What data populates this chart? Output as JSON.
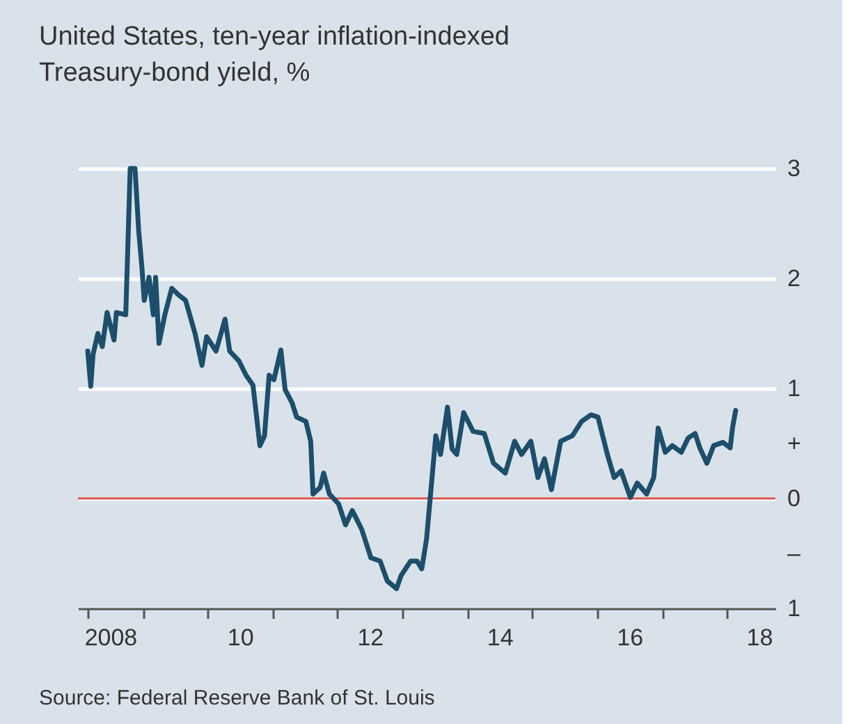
{
  "chart_data": {
    "type": "line",
    "title": "United States, ten-year inflation-indexed Treasury-bond yield, %",
    "annotations": [
      "Source: Federal Reserve Bank of St. Louis"
    ],
    "x": [
      "2008-02-25",
      "2008-03-13",
      "2008-03-26",
      "2008-04-22",
      "2008-05-17",
      "2008-06-13",
      "2008-07-22",
      "2008-08-04",
      "2008-09-26",
      "2008-10-21",
      "2008-11-17",
      "2008-12-08",
      "2008-12-26",
      "2009-01-08",
      "2009-02-04",
      "2009-02-28",
      "2009-03-13",
      "2009-04-01",
      "2009-05-04",
      "2009-06-12",
      "2009-07-21",
      "2009-08-29",
      "2009-10-21",
      "2009-11-29",
      "2009-12-25",
      "2010-02-16",
      "2010-04-08",
      "2010-05-04",
      "2010-06-25",
      "2010-08-04",
      "2010-09-12",
      "2010-10-21",
      "2010-11-16",
      "2010-12-12",
      "2011-01-08",
      "2011-02-16",
      "2011-03-12",
      "2011-04-20",
      "2011-05-16",
      "2011-07-07",
      "2011-08-03",
      "2011-08-16",
      "2011-09-25",
      "2011-10-15",
      "2011-11-16",
      "2012-01-07",
      "2012-02-15",
      "2012-03-24",
      "2012-05-16",
      "2012-07-07",
      "2012-08-28",
      "2012-10-07",
      "2012-11-28",
      "2012-12-24",
      "2013-02-15",
      "2013-03-24",
      "2013-04-19",
      "2013-05-16",
      "2013-06-11",
      "2013-07-07",
      "2013-08-03",
      "2013-09-11",
      "2013-10-07",
      "2013-11-02",
      "2013-12-11",
      "2014-02-02",
      "2014-04-06",
      "2014-05-28",
      "2014-08-02",
      "2014-09-24",
      "2014-11-02",
      "2014-12-24",
      "2015-02-02",
      "2015-03-11",
      "2015-04-19",
      "2015-06-10",
      "2015-08-15",
      "2015-10-06",
      "2015-11-28",
      "2016-01-06",
      "2016-02-28",
      "2016-04-06",
      "2016-05-15",
      "2016-07-06",
      "2016-08-14",
      "2016-10-06",
      "2016-11-15",
      "2016-12-10",
      "2017-01-19",
      "2017-02-27",
      "2017-04-19",
      "2017-05-28",
      "2017-07-06",
      "2017-08-01",
      "2017-09-10",
      "2017-10-18",
      "2017-12-10",
      "2018-01-19",
      "2018-02-02",
      "2018-02-19"
    ],
    "series": [
      {
        "color": "#1d4e6b",
        "values": [
          1.34,
          1.02,
          1.31,
          1.5,
          1.38,
          1.69,
          1.44,
          1.69,
          1.67,
          3.0,
          3.0,
          2.43,
          2.1,
          1.8,
          2.01,
          1.67,
          2.01,
          1.41,
          1.67,
          1.91,
          1.85,
          1.8,
          1.5,
          1.21,
          1.47,
          1.34,
          1.63,
          1.34,
          1.25,
          1.12,
          1.03,
          0.48,
          0.57,
          1.12,
          1.08,
          1.35,
          0.99,
          0.87,
          0.74,
          0.7,
          0.52,
          0.04,
          0.1,
          0.23,
          0.04,
          -0.05,
          -0.24,
          -0.11,
          -0.28,
          -0.54,
          -0.57,
          -0.75,
          -0.82,
          -0.7,
          -0.57,
          -0.57,
          -0.64,
          -0.37,
          0.1,
          0.57,
          0.4,
          0.83,
          0.45,
          0.4,
          0.78,
          0.61,
          0.59,
          0.32,
          0.23,
          0.52,
          0.4,
          0.52,
          0.19,
          0.36,
          0.08,
          0.52,
          0.57,
          0.7,
          0.76,
          0.74,
          0.4,
          0.19,
          0.25,
          0.01,
          0.14,
          0.04,
          0.19,
          0.64,
          0.42,
          0.48,
          0.42,
          0.55,
          0.59,
          0.46,
          0.32,
          0.48,
          0.51,
          0.46,
          0.65,
          0.8
        ]
      }
    ],
    "xlim": [
      "2008-01-01",
      "2018-10-01"
    ],
    "xticks": [
      {
        "value": "2008-02-25",
        "label": null
      },
      {
        "value": "2008-07-01",
        "label": "2008"
      },
      {
        "value": "2009-01-01",
        "label": null
      },
      {
        "value": "2010-01-01",
        "label": null
      },
      {
        "value": "2010-07-01",
        "label": "10"
      },
      {
        "value": "2011-01-01",
        "label": null
      },
      {
        "value": "2012-01-01",
        "label": null
      },
      {
        "value": "2012-07-01",
        "label": "12"
      },
      {
        "value": "2013-01-01",
        "label": null
      },
      {
        "value": "2014-01-01",
        "label": null
      },
      {
        "value": "2014-07-01",
        "label": "14"
      },
      {
        "value": "2015-01-01",
        "label": null
      },
      {
        "value": "2016-01-01",
        "label": null
      },
      {
        "value": "2016-07-01",
        "label": "16"
      },
      {
        "value": "2017-01-01",
        "label": null
      },
      {
        "value": "2018-01-01",
        "label": null
      },
      {
        "value": "2018-07-01",
        "label": "18"
      }
    ],
    "ylim": [
      -1,
      3
    ],
    "yticks": [
      3,
      2,
      1,
      {
        "value": 0.5,
        "label": "+"
      },
      0,
      {
        "value": -0.5,
        "label": "–"
      },
      {
        "value": -1,
        "label": "1"
      }
    ],
    "grid": "y",
    "ref_lines": [
      {
        "axis": "y",
        "value": 0,
        "color": "#d9534f"
      }
    ]
  }
}
